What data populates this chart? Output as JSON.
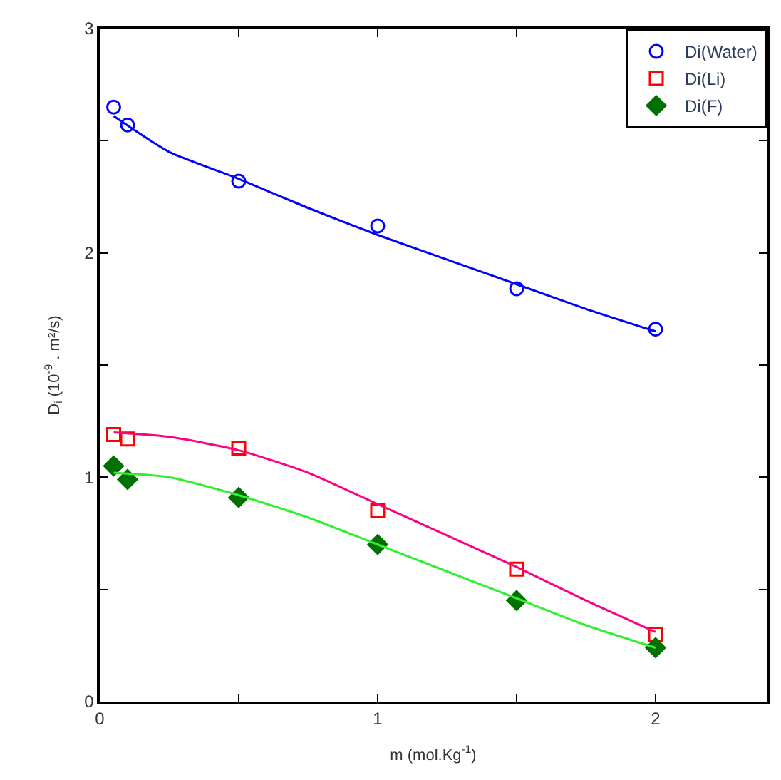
{
  "chart_data": {
    "type": "scatter",
    "xlabel": "m (mol.Kg$^{-1}$)",
    "ylabel": "D$_{i}$ (10$^{-9}$ . m²/s)",
    "xlim": [
      0,
      2.4
    ],
    "xticks": [
      0,
      {
        "value": 0.5,
        "label": null
      },
      1,
      {
        "value": 1.5,
        "label": null
      },
      2
    ],
    "ylim": [
      0,
      3
    ],
    "yticks": [
      0,
      {
        "value": 0.5,
        "label": null
      },
      1,
      {
        "value": 1.5,
        "label": null
      },
      2,
      {
        "value": 2.5,
        "label": null
      },
      3
    ],
    "legend": "top right",
    "series": [
      {
        "name": "Di(Water)",
        "color": "#0000ff",
        "marker": "circle",
        "x": [
          0.05,
          0.1,
          0.5,
          1.0,
          1.5,
          2.0
        ],
        "values": [
          2.65,
          2.57,
          2.32,
          2.12,
          1.84,
          1.66
        ]
      },
      {
        "name": "Di(Li)",
        "color": "#ff0000",
        "marker": "square",
        "x": [
          0.05,
          0.1,
          0.5,
          1.0,
          1.5,
          2.0
        ],
        "values": [
          1.19,
          1.17,
          1.13,
          0.85,
          0.59,
          0.3
        ]
      },
      {
        "name": "Di(F)",
        "color": "#007000",
        "marker": "diamond",
        "x": [
          0.05,
          0.1,
          0.5,
          1.0,
          1.5,
          2.0
        ],
        "values": [
          1.05,
          0.99,
          0.91,
          0.7,
          0.45,
          0.24
        ]
      },
      {
        "type": "line",
        "color": "#0000ff",
        "marker": "none",
        "x": [
          0.05,
          0.25,
          0.5,
          0.75,
          1.0,
          1.25,
          1.5,
          1.75,
          2.0
        ],
        "values": [
          2.61,
          2.45,
          2.33,
          2.2,
          2.08,
          1.97,
          1.86,
          1.75,
          1.65
        ]
      },
      {
        "type": "line",
        "color": "#ff0080",
        "marker": "none",
        "x": [
          0.05,
          0.25,
          0.5,
          0.75,
          1.0,
          1.25,
          1.5,
          1.75,
          2.0
        ],
        "values": [
          1.2,
          1.18,
          1.12,
          1.02,
          0.88,
          0.74,
          0.6,
          0.45,
          0.31
        ]
      },
      {
        "type": "line",
        "color": "#33ee33",
        "marker": "none",
        "x": [
          0.05,
          0.25,
          0.5,
          0.75,
          1.0,
          1.25,
          1.5,
          1.75,
          2.0
        ],
        "values": [
          1.02,
          1.0,
          0.92,
          0.82,
          0.7,
          0.58,
          0.46,
          0.34,
          0.24
        ]
      }
    ]
  }
}
